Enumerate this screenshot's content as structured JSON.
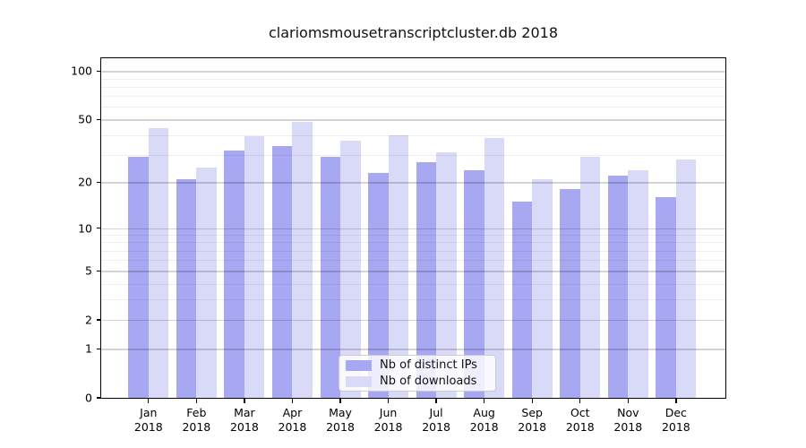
{
  "title": "clariomsmousetranscriptcluster.db 2018",
  "colors": {
    "ips_bar": "#a8a8f2",
    "downloads_bar": "#d9d9f8",
    "axis": "#000000",
    "grid_major": "#d4d4d4",
    "grid_minor": "#ececec",
    "legend_border": "#cccccc"
  },
  "legend": {
    "position": "lower center",
    "items": [
      {
        "label": "Nb of distinct IPs"
      },
      {
        "label": "Nb of downloads"
      }
    ]
  },
  "y_axis": {
    "tick_labels": [
      "100",
      "50",
      "20",
      "10",
      "5",
      "2",
      "1",
      "0"
    ]
  },
  "x_axis": {
    "month_line": [
      "Jan",
      "Feb",
      "Mar",
      "Apr",
      "May",
      "Jun",
      "Jul",
      "Aug",
      "Sep",
      "Oct",
      "Nov",
      "Dec"
    ],
    "year_line": "2018"
  },
  "chart_data": {
    "type": "bar",
    "title": "clariomsmousetranscriptcluster.db 2018",
    "categories": [
      "Jan 2018",
      "Feb 2018",
      "Mar 2018",
      "Apr 2018",
      "May 2018",
      "Jun 2018",
      "Jul 2018",
      "Aug 2018",
      "Sep 2018",
      "Oct 2018",
      "Nov 2018",
      "Dec 2018"
    ],
    "series": [
      {
        "name": "Nb of distinct IPs",
        "color": "#a8a8f2",
        "values": [
          29,
          21,
          32,
          34,
          29,
          23,
          27,
          24,
          15,
          18,
          22,
          16
        ]
      },
      {
        "name": "Nb of downloads",
        "color": "#d9d9f8",
        "values": [
          44,
          25,
          39,
          48,
          37,
          40,
          31,
          38,
          21,
          29,
          24,
          28
        ]
      }
    ],
    "xlabel": "",
    "ylabel": "",
    "y_scale": "log(1+x)",
    "y_ticks": [
      0,
      1,
      2,
      5,
      10,
      20,
      50,
      100
    ],
    "y_minor_ticks": [
      3,
      4,
      6,
      7,
      8,
      9,
      30,
      40,
      60,
      70,
      80,
      90
    ],
    "ylim": [
      0,
      120
    ],
    "grid": true,
    "legend_position": "lower center"
  }
}
